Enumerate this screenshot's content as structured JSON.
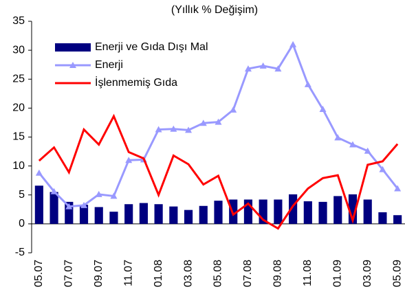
{
  "chart_data": {
    "type": "bar_line",
    "title": "(Yıllık % Değişim)",
    "categories": [
      "05.07",
      null,
      "07.07",
      null,
      "09.07",
      null,
      "11.07",
      null,
      "01.08",
      null,
      "03.08",
      null,
      "05.08",
      null,
      "07.08",
      null,
      "09.08",
      null,
      "11.08",
      null,
      "01.09",
      null,
      "03.09",
      null,
      "05.09"
    ],
    "series": [
      {
        "name": "Enerji ve Gıda Dışı Mal",
        "type": "bar",
        "color": "#000080",
        "values": [
          6.6,
          5.5,
          3.8,
          3.3,
          2.9,
          2.1,
          3.4,
          3.6,
          3.4,
          3.0,
          2.4,
          3.1,
          4.0,
          4.2,
          4.2,
          4.2,
          4.2,
          5.1,
          3.9,
          3.8,
          4.8,
          5.1,
          4.2,
          2.0,
          1.5
        ]
      },
      {
        "name": "Enerji",
        "type": "line",
        "marker": "triangle",
        "color": "#9999ff",
        "values": [
          8.8,
          5.6,
          3.0,
          3.2,
          5.1,
          4.8,
          11.0,
          11.1,
          16.3,
          16.4,
          16.2,
          17.4,
          17.6,
          19.7,
          26.8,
          27.3,
          26.8,
          31.0,
          24.1,
          19.8,
          14.9,
          13.7,
          12.6,
          9.4,
          6.1
        ]
      },
      {
        "name": "İşlenmemiş  Gıda",
        "type": "line",
        "color": "#ff0000",
        "values": [
          10.9,
          13.2,
          8.9,
          16.3,
          13.7,
          18.6,
          12.4,
          11.3,
          5.0,
          11.8,
          10.3,
          6.8,
          8.3,
          1.6,
          3.5,
          0.7,
          -0.8,
          3.1,
          6.1,
          7.9,
          8.4,
          0.6,
          10.2,
          10.8,
          13.8
        ]
      }
    ],
    "ylim": [
      -5,
      35
    ],
    "yticks": [
      -5,
      0,
      5,
      10,
      15,
      20,
      25,
      30,
      35
    ]
  }
}
